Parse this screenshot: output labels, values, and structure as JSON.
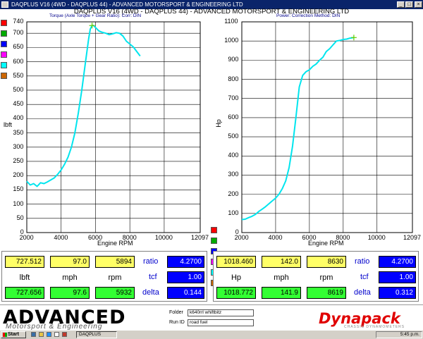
{
  "window": {
    "title": "DAQPLUS V16 (4WD - DAQPLUS 44) - ADVANCED MOTORSPORT & ENGINEERING LTD",
    "chart_title": "DAQPLUS V16 (4WD - DAQPLUS 44) - ADVANCED MOTORSPORT & ENGINEERING LTD",
    "left_subheader": "Torque (Axle Torque + Gear Ratio): Corr: DIN",
    "right_subheader": "Power: Correction Method: DIN",
    "controls": {
      "minimize": "_",
      "maximize": "□",
      "close": "×"
    }
  },
  "swatches": [
    "#ff0000",
    "#00aa00",
    "#0000ff",
    "#ff00ff",
    "#00ffff",
    "#cc6600"
  ],
  "chart_data": [
    {
      "type": "line",
      "xlabel": "Engine RPM",
      "ylabel": "lbft",
      "xlim": [
        2000,
        12097
      ],
      "ylim": [
        0,
        740
      ],
      "x_ticks": [
        "2000",
        "4000",
        "6000",
        "8000",
        "10000",
        "12097"
      ],
      "y_ticks": [
        "0",
        "50",
        "100",
        "150",
        "200",
        "250",
        "300",
        "350",
        "400",
        "450",
        "500",
        "550",
        "600",
        "650",
        "700",
        "740"
      ],
      "grid": true,
      "line_color": "#00e5ee",
      "series": [
        {
          "x": [
            2000,
            2200,
            2400,
            2600,
            2800,
            3000,
            3200,
            3400,
            3600,
            3800,
            4000,
            4200,
            4400,
            4600,
            4800,
            5000,
            5200,
            5400,
            5600,
            5700,
            5800,
            5894,
            6000,
            6200,
            6400,
            6600,
            6800,
            7000,
            7200,
            7400,
            7600,
            7800,
            8000,
            8200,
            8400,
            8600
          ],
          "y": [
            180,
            167,
            172,
            162,
            175,
            172,
            178,
            185,
            192,
            205,
            220,
            240,
            265,
            300,
            350,
            420,
            500,
            590,
            680,
            715,
            727,
            727,
            720,
            708,
            703,
            700,
            695,
            698,
            702,
            700,
            690,
            672,
            662,
            652,
            636,
            620
          ]
        }
      ]
    },
    {
      "type": "line",
      "xlabel": "Engine RPM",
      "ylabel": "Hp",
      "xlim": [
        2000,
        12097
      ],
      "ylim": [
        0,
        1100
      ],
      "x_ticks": [
        "2000",
        "4000",
        "6000",
        "8000",
        "10000",
        "12097"
      ],
      "y_ticks": [
        "0",
        "100",
        "200",
        "300",
        "400",
        "500",
        "600",
        "700",
        "800",
        "900",
        "1000",
        "1100"
      ],
      "grid": true,
      "line_color": "#00e5ee",
      "series": [
        {
          "x": [
            2000,
            2200,
            2400,
            2600,
            2800,
            3000,
            3200,
            3400,
            3600,
            3800,
            4000,
            4200,
            4400,
            4600,
            4800,
            5000,
            5200,
            5400,
            5600,
            5800,
            6000,
            6200,
            6400,
            6600,
            6800,
            7000,
            7200,
            7400,
            7600,
            7800,
            8000,
            8200,
            8400,
            8630
          ],
          "y": [
            68,
            70,
            78,
            85,
            95,
            110,
            122,
            135,
            150,
            165,
            180,
            200,
            230,
            270,
            340,
            450,
            600,
            760,
            820,
            840,
            850,
            868,
            880,
            900,
            915,
            945,
            960,
            980,
            1000,
            1003,
            1008,
            1010,
            1015,
            1018
          ]
        }
      ]
    }
  ],
  "left_panel": {
    "run1": {
      "torque": "727.512",
      "mph": "97.0",
      "rpm": "5894"
    },
    "run2": {
      "torque": "727.656",
      "mph": "97.6",
      "rpm": "5932"
    },
    "labels": {
      "unit": "lbft",
      "speed": "mph",
      "rpm": "rpm"
    },
    "ratio_label": "ratio",
    "ratio": "4.2700",
    "tcf_label": "tcf",
    "tcf": "1.00",
    "delta_label": "delta",
    "delta": "0.144"
  },
  "right_panel": {
    "run1": {
      "power": "1018.460",
      "mph": "142.0",
      "rpm": "8630"
    },
    "run2": {
      "power": "1018.772",
      "mph": "141.9",
      "rpm": "8619"
    },
    "labels": {
      "unit": "Hp",
      "speed": "mph",
      "rpm": "rpm"
    },
    "ratio_label": "ratio",
    "ratio": "4.2700",
    "tcf_label": "tcf",
    "tcf": "1.00",
    "delta_label": "delta",
    "delta": "0.312"
  },
  "footer": {
    "brand": "ADVANCED",
    "brand_sub": "Motorsport & Engineering",
    "folder_label": "Folder",
    "folder_value": "k640rrl whiftbitz",
    "runid_label": "Run ID",
    "runid_value": "road fuel",
    "dyno_brand": "Dynapack",
    "dyno_sub": "CHASSIS DYNAMOMETERS"
  },
  "taskbar": {
    "start_label": "Start",
    "task_label": "DAQPLUS",
    "clock": "5:45 p.m."
  }
}
